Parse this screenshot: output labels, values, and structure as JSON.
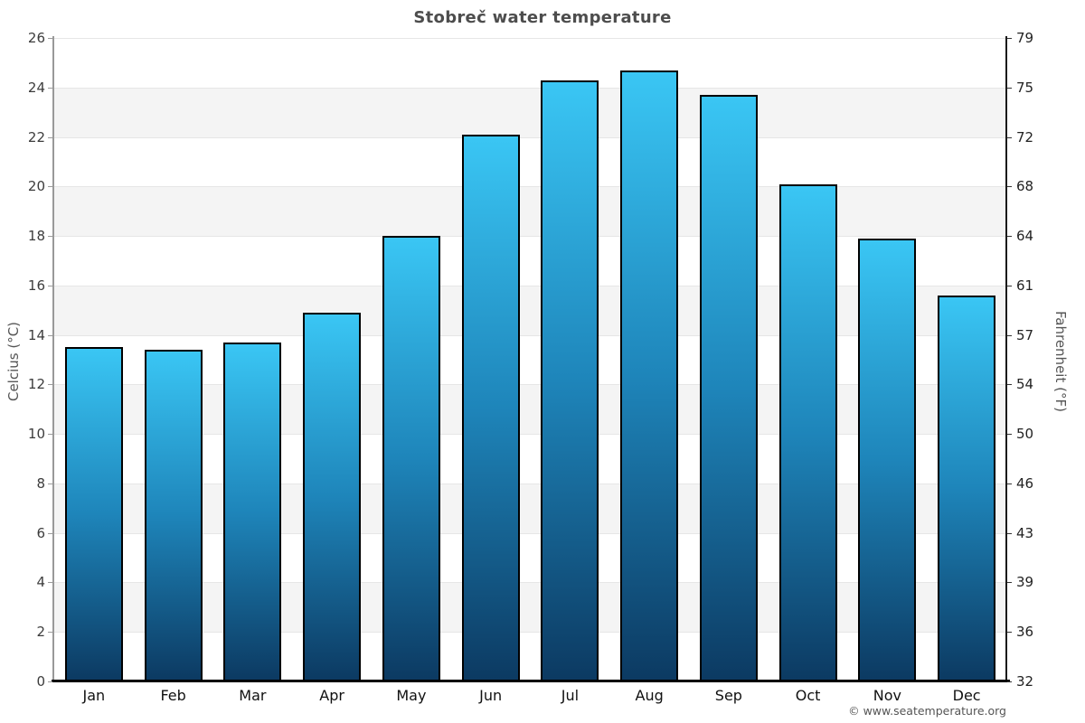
{
  "chart_data": {
    "type": "bar",
    "title": "Stobreč water temperature",
    "categories": [
      "Jan",
      "Feb",
      "Mar",
      "Apr",
      "May",
      "Jun",
      "Jul",
      "Aug",
      "Sep",
      "Oct",
      "Nov",
      "Dec"
    ],
    "values": [
      13.5,
      13.4,
      13.7,
      14.9,
      18.0,
      22.1,
      24.3,
      24.7,
      23.7,
      20.1,
      17.9,
      15.6
    ],
    "ylabel_left": "Celcius (°C)",
    "ylabel_right": "Fahrenheit (°F)",
    "ylim": [
      0,
      26
    ],
    "ytick_step": 2,
    "yticks_celsius": [
      0,
      2,
      4,
      6,
      8,
      10,
      12,
      14,
      16,
      18,
      20,
      22,
      24,
      26
    ],
    "yticks_fahrenheit": [
      32,
      36,
      39,
      43,
      46,
      50,
      54,
      57,
      61,
      64,
      68,
      72,
      75,
      79
    ],
    "legend": "none",
    "grid": "alternating horizontal bands, line every 2°C",
    "attribution": "© www.seatemperature.org",
    "colors": {
      "bar_gradient_top": "#3ac6f4",
      "bar_gradient_mid": "#1e85ba",
      "bar_gradient_bottom": "#0c3a62",
      "bar_border": "#000000",
      "band_gray": "#f4f4f4",
      "band_white": "#ffffff",
      "gridline": "#e6e6e6",
      "axis_line_left": "#999999",
      "axis_line_bottom": "#000000",
      "title": "#4d4d4d",
      "tick_label": "#333333"
    }
  }
}
